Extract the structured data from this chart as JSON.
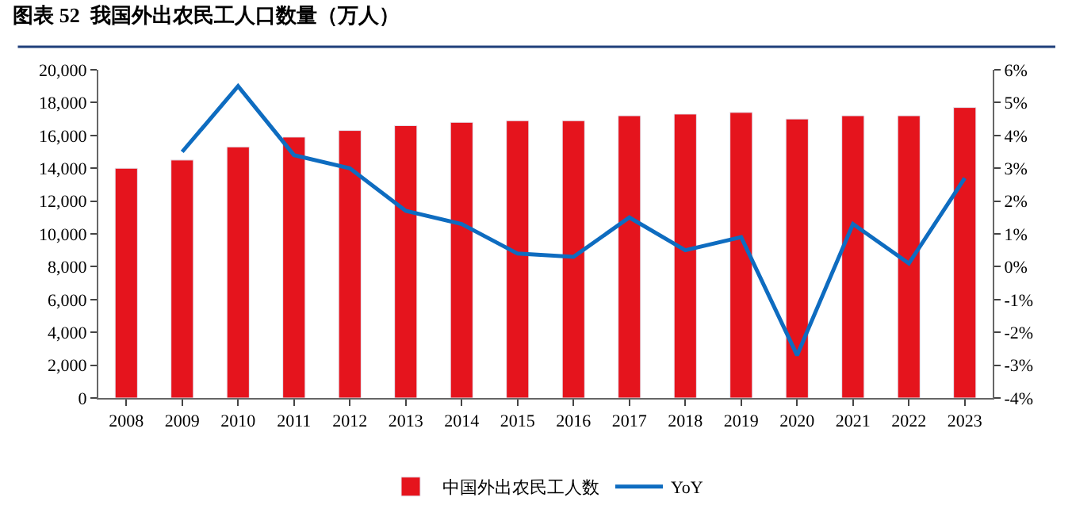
{
  "chart_data": {
    "type": "bar",
    "title": "图表 52  我国外出农民工人口数量（万人）",
    "categories": [
      "2008",
      "2009",
      "2010",
      "2011",
      "2012",
      "2013",
      "2014",
      "2015",
      "2016",
      "2017",
      "2018",
      "2019",
      "2020",
      "2021",
      "2022",
      "2023"
    ],
    "series": [
      {
        "name": "中国外出农民工人数",
        "color": "#e5141d",
        "values": [
          14000,
          14500,
          15300,
          15900,
          16300,
          16600,
          16800,
          16900,
          16900,
          17200,
          17300,
          17400,
          17000,
          17200,
          17200,
          17700
        ]
      },
      {
        "name": "YoY",
        "type": "line",
        "axis": "y2",
        "color": "#0e6cc0",
        "values": [
          null,
          3.5,
          5.5,
          3.4,
          3.0,
          1.7,
          1.3,
          0.4,
          0.3,
          1.5,
          0.5,
          0.9,
          -2.7,
          1.3,
          0.1,
          2.7
        ]
      }
    ],
    "ylim": [
      0,
      20000
    ],
    "yticks": [
      0,
      {
        "value": 2000,
        "label": "2,000"
      },
      {
        "value": 4000,
        "label": "4,000"
      },
      {
        "value": 6000,
        "label": "6,000"
      },
      {
        "value": 8000,
        "label": "8,000"
      },
      {
        "value": 10000,
        "label": "10,000"
      },
      {
        "value": 12000,
        "label": "12,000"
      },
      {
        "value": 14000,
        "label": "14,000"
      },
      {
        "value": 16000,
        "label": "16,000"
      },
      {
        "value": 18000,
        "label": "18,000"
      },
      {
        "value": 20000,
        "label": "20,000"
      }
    ],
    "y2lim": [
      -4,
      6
    ],
    "y2ticks": [
      {
        "value": -4,
        "label": "-4%"
      },
      {
        "value": -3,
        "label": "-3%"
      },
      {
        "value": -2,
        "label": "-2%"
      },
      {
        "value": -1,
        "label": "-1%"
      },
      {
        "value": 0,
        "label": "0%"
      },
      {
        "value": 1,
        "label": "1%"
      },
      {
        "value": 2,
        "label": "2%"
      },
      {
        "value": 3,
        "label": "3%"
      },
      {
        "value": 4,
        "label": "4%"
      },
      {
        "value": 5,
        "label": "5%"
      },
      {
        "value": 6,
        "label": "6%"
      }
    ],
    "legend": "bottom",
    "marker": "none",
    "line_style": "solid"
  }
}
